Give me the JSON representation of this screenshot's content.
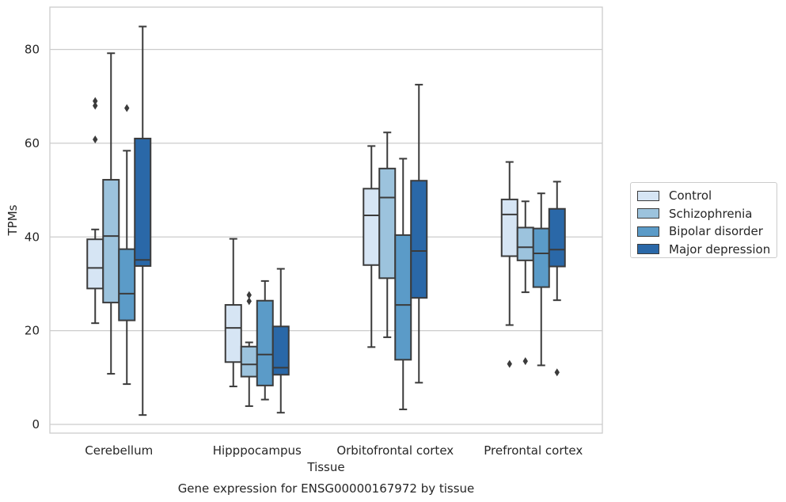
{
  "chart_data": {
    "type": "box",
    "caption": "Gene expression for ENSG00000167972 by tissue",
    "xlabel": "Tissue",
    "ylabel": "TPMs",
    "ylim": [
      -1.5,
      89
    ],
    "yticks": [
      0,
      20,
      40,
      60,
      80
    ],
    "grid": "horizontal",
    "legend_position": "right",
    "categories": [
      "Cerebellum",
      "Hipppocampus",
      "Orbitofrontal cortex",
      "Prefrontal cortex"
    ],
    "series": [
      {
        "name": "Control",
        "color": "#d6e5f4",
        "boxes": [
          {
            "whislo": 21.6,
            "q1": 29.0,
            "med": 33.4,
            "q3": 39.5,
            "whishi": 41.6,
            "fliers": [
              60.8,
              68.0,
              69.0
            ]
          },
          {
            "whislo": 8.1,
            "q1": 13.3,
            "med": 20.6,
            "q3": 25.5,
            "whishi": 39.6,
            "fliers": []
          },
          {
            "whislo": 16.5,
            "q1": 34.0,
            "med": 44.6,
            "q3": 50.3,
            "whishi": 59.4,
            "fliers": []
          },
          {
            "whislo": 21.2,
            "q1": 35.9,
            "med": 44.8,
            "q3": 48.0,
            "whishi": 56.0,
            "fliers": [
              12.9
            ]
          }
        ]
      },
      {
        "name": "Schizophrenia",
        "color": "#9cc3dd",
        "boxes": [
          {
            "whislo": 10.8,
            "q1": 26.0,
            "med": 40.2,
            "q3": 52.2,
            "whishi": 79.2,
            "fliers": []
          },
          {
            "whislo": 3.9,
            "q1": 10.2,
            "med": 12.8,
            "q3": 16.6,
            "whishi": 17.5,
            "fliers": [
              26.3,
              27.6
            ]
          },
          {
            "whislo": 18.6,
            "q1": 31.2,
            "med": 48.4,
            "q3": 54.6,
            "whishi": 62.3,
            "fliers": []
          },
          {
            "whislo": 28.2,
            "q1": 35.0,
            "med": 37.8,
            "q3": 42.0,
            "whishi": 47.6,
            "fliers": [
              13.5
            ]
          }
        ]
      },
      {
        "name": "Bipolar disorder",
        "color": "#5b9bc8",
        "boxes": [
          {
            "whislo": 8.6,
            "q1": 22.2,
            "med": 27.9,
            "q3": 37.4,
            "whishi": 58.4,
            "fliers": [
              67.5
            ]
          },
          {
            "whislo": 5.3,
            "q1": 8.3,
            "med": 14.9,
            "q3": 26.4,
            "whishi": 30.6,
            "fliers": []
          },
          {
            "whislo": 3.2,
            "q1": 13.8,
            "med": 25.5,
            "q3": 40.4,
            "whishi": 56.7,
            "fliers": []
          },
          {
            "whislo": 12.6,
            "q1": 29.3,
            "med": 36.5,
            "q3": 41.8,
            "whishi": 49.3,
            "fliers": []
          }
        ]
      },
      {
        "name": "Major depression",
        "color": "#2a68a8",
        "boxes": [
          {
            "whislo": 2.0,
            "q1": 33.8,
            "med": 35.1,
            "q3": 61.0,
            "whishi": 84.9,
            "fliers": []
          },
          {
            "whislo": 2.5,
            "q1": 10.6,
            "med": 12.1,
            "q3": 20.9,
            "whishi": 33.2,
            "fliers": []
          },
          {
            "whislo": 8.9,
            "q1": 27.0,
            "med": 37.0,
            "q3": 52.0,
            "whishi": 72.5,
            "fliers": []
          },
          {
            "whislo": 26.5,
            "q1": 33.7,
            "med": 37.3,
            "q3": 46.0,
            "whishi": 51.8,
            "fliers": [
              11.1
            ]
          }
        ]
      }
    ]
  }
}
